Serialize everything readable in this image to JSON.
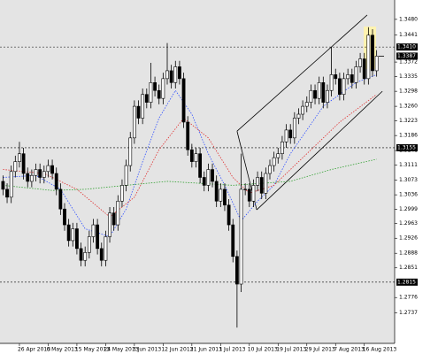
{
  "chart_data": {
    "type": "candlestick",
    "categories": [
      null,
      null,
      null,
      null,
      "26 Apr 2013",
      null,
      null,
      null,
      null,
      null,
      null,
      "6 May 2013",
      null,
      null,
      null,
      null,
      null,
      null,
      "15 May 2013",
      null,
      null,
      null,
      null,
      null,
      null,
      "24 May 2013",
      null,
      null,
      null,
      null,
      null,
      null,
      "3 Jun 2013",
      null,
      null,
      null,
      null,
      null,
      null,
      "12 Jun 2013",
      null,
      null,
      null,
      null,
      null,
      null,
      "21 Jun 2013",
      null,
      null,
      null,
      null,
      null,
      null,
      "1 Jul 2013",
      null,
      null,
      null,
      null,
      null,
      null,
      "10 Jul 2013",
      null,
      null,
      null,
      null,
      null,
      null,
      "19 Jul 2013",
      null,
      null,
      null,
      null,
      null,
      null,
      "29 Jul 2013",
      null,
      null,
      null,
      null,
      null,
      null,
      "7 Aug 2013",
      null,
      null,
      null,
      null,
      null,
      null,
      "16 Aug 2013",
      null,
      null,
      null
    ],
    "open": [
      1.307,
      1.305,
      1.303,
      1.3095,
      1.312,
      1.314,
      1.309,
      1.307,
      1.3085,
      1.31,
      1.308,
      1.3095,
      1.311,
      1.309,
      1.305,
      1.3,
      1.296,
      1.292,
      1.295,
      1.29,
      1.287,
      1.289,
      1.293,
      1.296,
      1.29,
      1.287,
      1.293,
      1.299,
      1.296,
      1.302,
      1.306,
      1.311,
      1.318,
      1.326,
      1.323,
      1.329,
      1.327,
      1.332,
      1.33,
      1.328,
      1.333,
      1.335,
      1.332,
      1.336,
      1.333,
      1.322,
      1.315,
      1.312,
      1.314,
      1.308,
      1.306,
      1.31,
      1.307,
      1.302,
      1.305,
      1.301,
      1.296,
      1.288,
      1.281,
      1.305,
      1.305,
      1.302,
      1.306,
      1.308,
      1.304,
      1.309,
      1.311,
      1.313,
      1.314,
      1.317,
      1.32,
      1.318,
      1.323,
      1.324,
      1.326,
      1.327,
      1.33,
      1.328,
      1.332,
      1.327,
      1.33,
      1.334,
      1.333,
      1.329,
      1.333,
      1.334,
      1.332,
      1.336,
      1.338,
      1.333,
      1.344,
      1.335
    ],
    "high": [
      1.3085,
      1.3065,
      1.311,
      1.3135,
      1.317,
      1.3155,
      1.3105,
      1.31,
      1.3115,
      1.3115,
      1.311,
      1.3125,
      1.3125,
      1.3105,
      1.3065,
      1.3015,
      1.2975,
      1.2965,
      1.2965,
      1.2915,
      1.2905,
      1.2945,
      1.2975,
      1.2975,
      1.2915,
      1.2945,
      1.3005,
      1.3005,
      1.3035,
      1.3075,
      1.3125,
      1.3195,
      1.3275,
      1.3275,
      1.3305,
      1.3305,
      1.337,
      1.3335,
      1.3315,
      1.3345,
      1.342,
      1.3365,
      1.3375,
      1.3375,
      1.3345,
      1.3235,
      1.3165,
      1.3155,
      1.3155,
      1.3095,
      1.3115,
      1.3115,
      1.3085,
      1.3065,
      1.3065,
      1.3025,
      1.2975,
      1.2895,
      1.314,
      1.3065,
      1.3065,
      1.3075,
      1.3095,
      1.3095,
      1.3105,
      1.3125,
      1.3145,
      1.3155,
      1.3185,
      1.3215,
      1.3215,
      1.3245,
      1.3255,
      1.3275,
      1.3285,
      1.3315,
      1.3315,
      1.3335,
      1.3335,
      1.3315,
      1.341,
      1.3355,
      1.3345,
      1.3345,
      1.3355,
      1.3355,
      1.3375,
      1.3395,
      1.3395,
      1.346,
      1.3455,
      1.3402
    ],
    "low": [
      1.3035,
      1.3015,
      1.3015,
      1.308,
      1.3105,
      1.3075,
      1.3055,
      1.3055,
      1.307,
      1.3065,
      1.3065,
      1.308,
      1.3075,
      1.3035,
      1.2985,
      1.2945,
      1.2905,
      1.2905,
      1.2885,
      1.2855,
      1.2855,
      1.2875,
      1.2915,
      1.2885,
      1.2855,
      1.2855,
      1.2915,
      1.2945,
      1.2945,
      1.3005,
      1.3045,
      1.3095,
      1.3165,
      1.3215,
      1.3215,
      1.3255,
      1.3255,
      1.3285,
      1.3265,
      1.3265,
      1.3315,
      1.3305,
      1.3305,
      1.3315,
      1.3205,
      1.3135,
      1.3105,
      1.3105,
      1.3065,
      1.3045,
      1.3045,
      1.3055,
      1.3005,
      1.3005,
      1.2995,
      1.2945,
      1.2865,
      1.27,
      1.279,
      1.3035,
      1.3005,
      1.3005,
      1.3045,
      1.3025,
      1.3025,
      1.3075,
      1.3095,
      1.3115,
      1.3125,
      1.3155,
      1.3165,
      1.3165,
      1.3215,
      1.3225,
      1.3245,
      1.3255,
      1.3265,
      1.3265,
      1.3255,
      1.3255,
      1.3285,
      1.3315,
      1.3275,
      1.3275,
      1.3315,
      1.3305,
      1.3305,
      1.3345,
      1.3315,
      1.3315,
      1.3335,
      1.3335
    ],
    "close": [
      1.305,
      1.303,
      1.3095,
      1.312,
      1.314,
      1.309,
      1.307,
      1.3085,
      1.31,
      1.308,
      1.3095,
      1.311,
      1.309,
      1.305,
      1.3,
      1.296,
      1.292,
      1.295,
      1.29,
      1.287,
      1.289,
      1.293,
      1.296,
      1.29,
      1.287,
      1.293,
      1.299,
      1.296,
      1.302,
      1.306,
      1.311,
      1.318,
      1.326,
      1.323,
      1.329,
      1.327,
      1.332,
      1.33,
      1.328,
      1.333,
      1.335,
      1.332,
      1.336,
      1.333,
      1.322,
      1.315,
      1.312,
      1.314,
      1.308,
      1.306,
      1.31,
      1.307,
      1.302,
      1.305,
      1.301,
      1.296,
      1.288,
      1.281,
      1.305,
      1.305,
      1.302,
      1.306,
      1.308,
      1.304,
      1.309,
      1.311,
      1.313,
      1.314,
      1.317,
      1.32,
      1.318,
      1.323,
      1.324,
      1.326,
      1.327,
      1.33,
      1.328,
      1.332,
      1.327,
      1.33,
      1.334,
      1.333,
      1.329,
      1.333,
      1.334,
      1.332,
      1.336,
      1.338,
      1.333,
      1.344,
      1.335,
      1.3387
    ],
    "indicators": [
      {
        "color": "#3050ff",
        "x": [
          0,
          8,
          14,
          20,
          26,
          30,
          34,
          38,
          42,
          46,
          50,
          54,
          58,
          62,
          66,
          70,
          74,
          78,
          82,
          86,
          91
        ],
        "values": [
          1.308,
          1.3085,
          1.305,
          1.295,
          1.293,
          1.3,
          1.312,
          1.323,
          1.33,
          1.324,
          1.314,
          1.306,
          1.297,
          1.302,
          1.306,
          1.314,
          1.32,
          1.326,
          1.329,
          1.332,
          1.334
        ]
      },
      {
        "color": "#e03030",
        "x": [
          0,
          10,
          18,
          26,
          32,
          38,
          44,
          50,
          56,
          60,
          66,
          74,
          82,
          91
        ],
        "values": [
          1.31,
          1.309,
          1.305,
          1.298,
          1.303,
          1.315,
          1.323,
          1.318,
          1.308,
          1.304,
          1.306,
          1.314,
          1.322,
          1.329
        ]
      },
      {
        "color": "#30a030",
        "x": [
          0,
          12,
          20,
          40,
          56,
          70,
          80,
          91
        ],
        "values": [
          1.306,
          1.3047,
          1.305,
          1.307,
          1.306,
          1.307,
          1.31,
          1.3126
        ]
      }
    ],
    "trendlines": [
      {
        "x": [
          57,
          88.7
        ],
        "values": [
          1.3197,
          1.3491
        ]
      },
      {
        "x": [
          61.8,
          92.4
        ],
        "values": [
          1.2998,
          1.3298
        ]
      },
      {
        "x": [
          57,
          61.8
        ],
        "values": [
          1.3197,
          1.2998
        ]
      }
    ],
    "levels": [
      {
        "value": 1.341,
        "label": "1.3410"
      },
      {
        "value": 1.3155,
        "label": "1.3155"
      },
      {
        "value": 1.2815,
        "label": "1.2815"
      }
    ],
    "last_price": 1.3387,
    "ylim": [
      1.266,
      1.3529
    ],
    "yticks": [
      {
        "value": 1.348,
        "label": "1.3480"
      },
      1.3441,
      1.3372,
      1.3335,
      1.3298,
      {
        "value": 1.326,
        "label": "1.3260"
      },
      1.3223,
      1.3186,
      1.3148,
      1.3111,
      1.3073,
      1.3036,
      1.2999,
      1.2963,
      1.2926,
      1.2888,
      1.2851,
      1.2776,
      1.2737
    ]
  }
}
